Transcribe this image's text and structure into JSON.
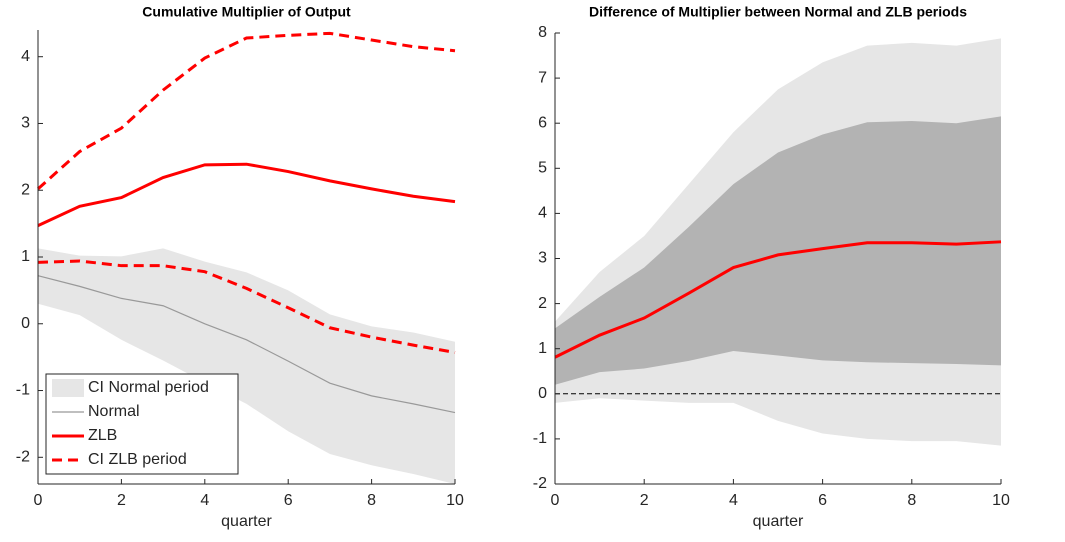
{
  "chart_data": [
    {
      "type": "line",
      "title": "Cumulative Multiplier of Output",
      "x_label": "quarter",
      "x": [
        0,
        1,
        2,
        3,
        4,
        5,
        6,
        7,
        8,
        9,
        10
      ],
      "xlim": [
        0,
        10
      ],
      "xticks": [
        0,
        2,
        4,
        6,
        8,
        10
      ],
      "ylim": [
        -2.4,
        4.4
      ],
      "yticks": [
        -2,
        -1,
        0,
        1,
        2,
        3,
        4
      ],
      "legend": "lower left",
      "series": [
        {
          "name": "CI Normal period",
          "color": "#e6e6e6",
          "upper": [
            1.13,
            1.02,
            1.01,
            1.13,
            0.93,
            0.77,
            0.5,
            0.14,
            -0.04,
            -0.13,
            -0.27
          ],
          "lower": [
            0.3,
            0.13,
            -0.24,
            -0.55,
            -0.88,
            -1.2,
            -1.61,
            -1.95,
            -2.12,
            -2.25,
            -2.4
          ]
        },
        {
          "name": "Normal",
          "color": "#999999",
          "width": 1.2,
          "values": [
            0.72,
            0.56,
            0.38,
            0.27,
            0.0,
            -0.24,
            -0.56,
            -0.89,
            -1.08,
            -1.2,
            -1.33
          ]
        },
        {
          "name": "ZLB",
          "color": "#ff0000",
          "width": 3,
          "values": [
            1.47,
            1.76,
            1.89,
            2.19,
            2.38,
            2.39,
            2.28,
            2.14,
            2.02,
            1.91,
            1.83
          ]
        },
        {
          "name": "CI ZLB period",
          "color": "#ff0000",
          "width": 3,
          "line_style": "dashed",
          "upper": [
            2.02,
            2.58,
            2.93,
            3.5,
            3.98,
            4.28,
            4.32,
            4.35,
            4.25,
            4.15,
            4.09
          ],
          "lower": [
            0.92,
            0.94,
            0.87,
            0.87,
            0.78,
            0.53,
            0.24,
            -0.06,
            -0.2,
            -0.32,
            -0.43
          ]
        }
      ]
    },
    {
      "type": "line",
      "title": "Difference of Multiplier between Normal and ZLB periods",
      "x_label": "quarter",
      "x": [
        0,
        1,
        2,
        3,
        4,
        5,
        6,
        7,
        8,
        9,
        10
      ],
      "xlim": [
        0,
        10
      ],
      "xticks": [
        0,
        2,
        4,
        6,
        8,
        10
      ],
      "ylim": [
        -2,
        8
      ],
      "yticks": [
        -2,
        -1,
        0,
        1,
        2,
        3,
        4,
        5,
        6,
        7,
        8
      ],
      "reference_line": 0,
      "series": [
        {
          "color": "#e6e6e6",
          "upper": [
            1.6,
            2.7,
            3.5,
            4.65,
            5.8,
            6.75,
            7.35,
            7.72,
            7.78,
            7.72,
            7.88
          ],
          "lower": [
            -0.2,
            -0.1,
            -0.15,
            -0.2,
            -0.2,
            -0.6,
            -0.88,
            -1.0,
            -1.05,
            -1.05,
            -1.15
          ]
        },
        {
          "color": "#b3b3b3",
          "upper": [
            1.45,
            2.15,
            2.8,
            3.7,
            4.65,
            5.35,
            5.75,
            6.02,
            6.05,
            6.0,
            6.15
          ],
          "lower": [
            0.2,
            0.48,
            0.56,
            0.73,
            0.95,
            0.85,
            0.74,
            0.7,
            0.68,
            0.66,
            0.63
          ]
        },
        {
          "color": "#ff0000",
          "width": 3,
          "values": [
            0.81,
            1.3,
            1.68,
            2.23,
            2.8,
            3.08,
            3.22,
            3.35,
            3.35,
            3.32,
            3.37
          ]
        }
      ]
    }
  ]
}
